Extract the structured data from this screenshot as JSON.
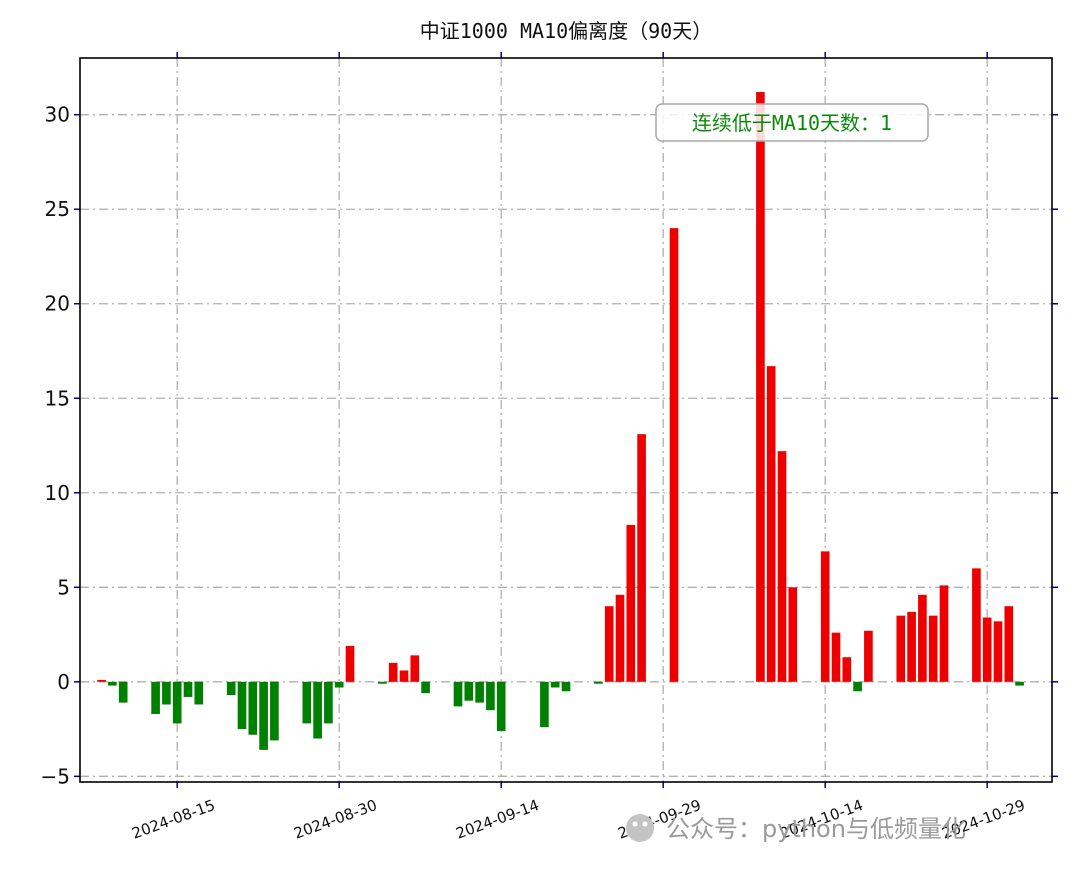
{
  "chart_data": {
    "type": "bar",
    "title": "中证1000 MA10偏离度（90天）",
    "xlabel": "",
    "ylabel": "",
    "ylim": [
      -5.3,
      33
    ],
    "yticks": [
      -5,
      0,
      5,
      10,
      15,
      20,
      25,
      30
    ],
    "ytick_labels": [
      "−5",
      "0",
      "5",
      "10",
      "15",
      "20",
      "25",
      "30"
    ],
    "xlim": [
      "2024-08-06",
      "2024-11-04"
    ],
    "xticks": [
      "2024-08-15",
      "2024-08-30",
      "2024-09-14",
      "2024-09-29",
      "2024-10-14",
      "2024-10-29"
    ],
    "xtick_labels": [
      "2024-08-15",
      "2024-08-30",
      "2024-09-14",
      "2024-09-29",
      "2024-10-14",
      "2024-10-29"
    ],
    "grid": true,
    "colors": {
      "positive": "#ee0000",
      "negative": "#008000",
      "grid": "#b0b0b0",
      "tick": "#00008b"
    },
    "series": [
      {
        "x": [
          "2024-08-08",
          "2024-08-09",
          "2024-08-10",
          "2024-08-13",
          "2024-08-14",
          "2024-08-15",
          "2024-08-16",
          "2024-08-17",
          "2024-08-20",
          "2024-08-21",
          "2024-08-22",
          "2024-08-23",
          "2024-08-24",
          "2024-08-27",
          "2024-08-28",
          "2024-08-29",
          "2024-08-30",
          "2024-08-31",
          "2024-09-03",
          "2024-09-04",
          "2024-09-05",
          "2024-09-06",
          "2024-09-07",
          "2024-09-10",
          "2024-09-11",
          "2024-09-12",
          "2024-09-13",
          "2024-09-14",
          "2024-09-18",
          "2024-09-19",
          "2024-09-20",
          "2024-09-23",
          "2024-09-24",
          "2024-09-25",
          "2024-09-26",
          "2024-09-27",
          "2024-09-30",
          "2024-10-08",
          "2024-10-09",
          "2024-10-10",
          "2024-10-11",
          "2024-10-14",
          "2024-10-15",
          "2024-10-16",
          "2024-10-17",
          "2024-10-18",
          "2024-10-21",
          "2024-10-22",
          "2024-10-23",
          "2024-10-24",
          "2024-10-25",
          "2024-10-28",
          "2024-10-29",
          "2024-10-30",
          "2024-10-31",
          "2024-11-01"
        ],
        "values": [
          0.1,
          -0.2,
          -1.1,
          -1.7,
          -1.2,
          -2.2,
          -0.8,
          -1.2,
          -0.7,
          -2.5,
          -2.8,
          -3.6,
          -3.1,
          -2.2,
          -3.0,
          -2.2,
          -0.3,
          1.9,
          -0.1,
          1.0,
          0.6,
          1.4,
          -0.6,
          -1.3,
          -1.0,
          -1.1,
          -1.5,
          -2.6,
          -2.4,
          -0.3,
          -0.5,
          -0.1,
          4.0,
          4.6,
          8.3,
          13.1,
          24.0,
          31.2,
          16.7,
          12.2,
          5.0,
          6.9,
          2.6,
          1.3,
          -0.5,
          2.7,
          3.5,
          3.7,
          4.6,
          3.5,
          5.1,
          6.0,
          3.4,
          3.2,
          4.0,
          -0.2
        ]
      }
    ],
    "annotation": "连续低于MA10天数：1"
  },
  "watermark": "公众号：python与低频量化"
}
